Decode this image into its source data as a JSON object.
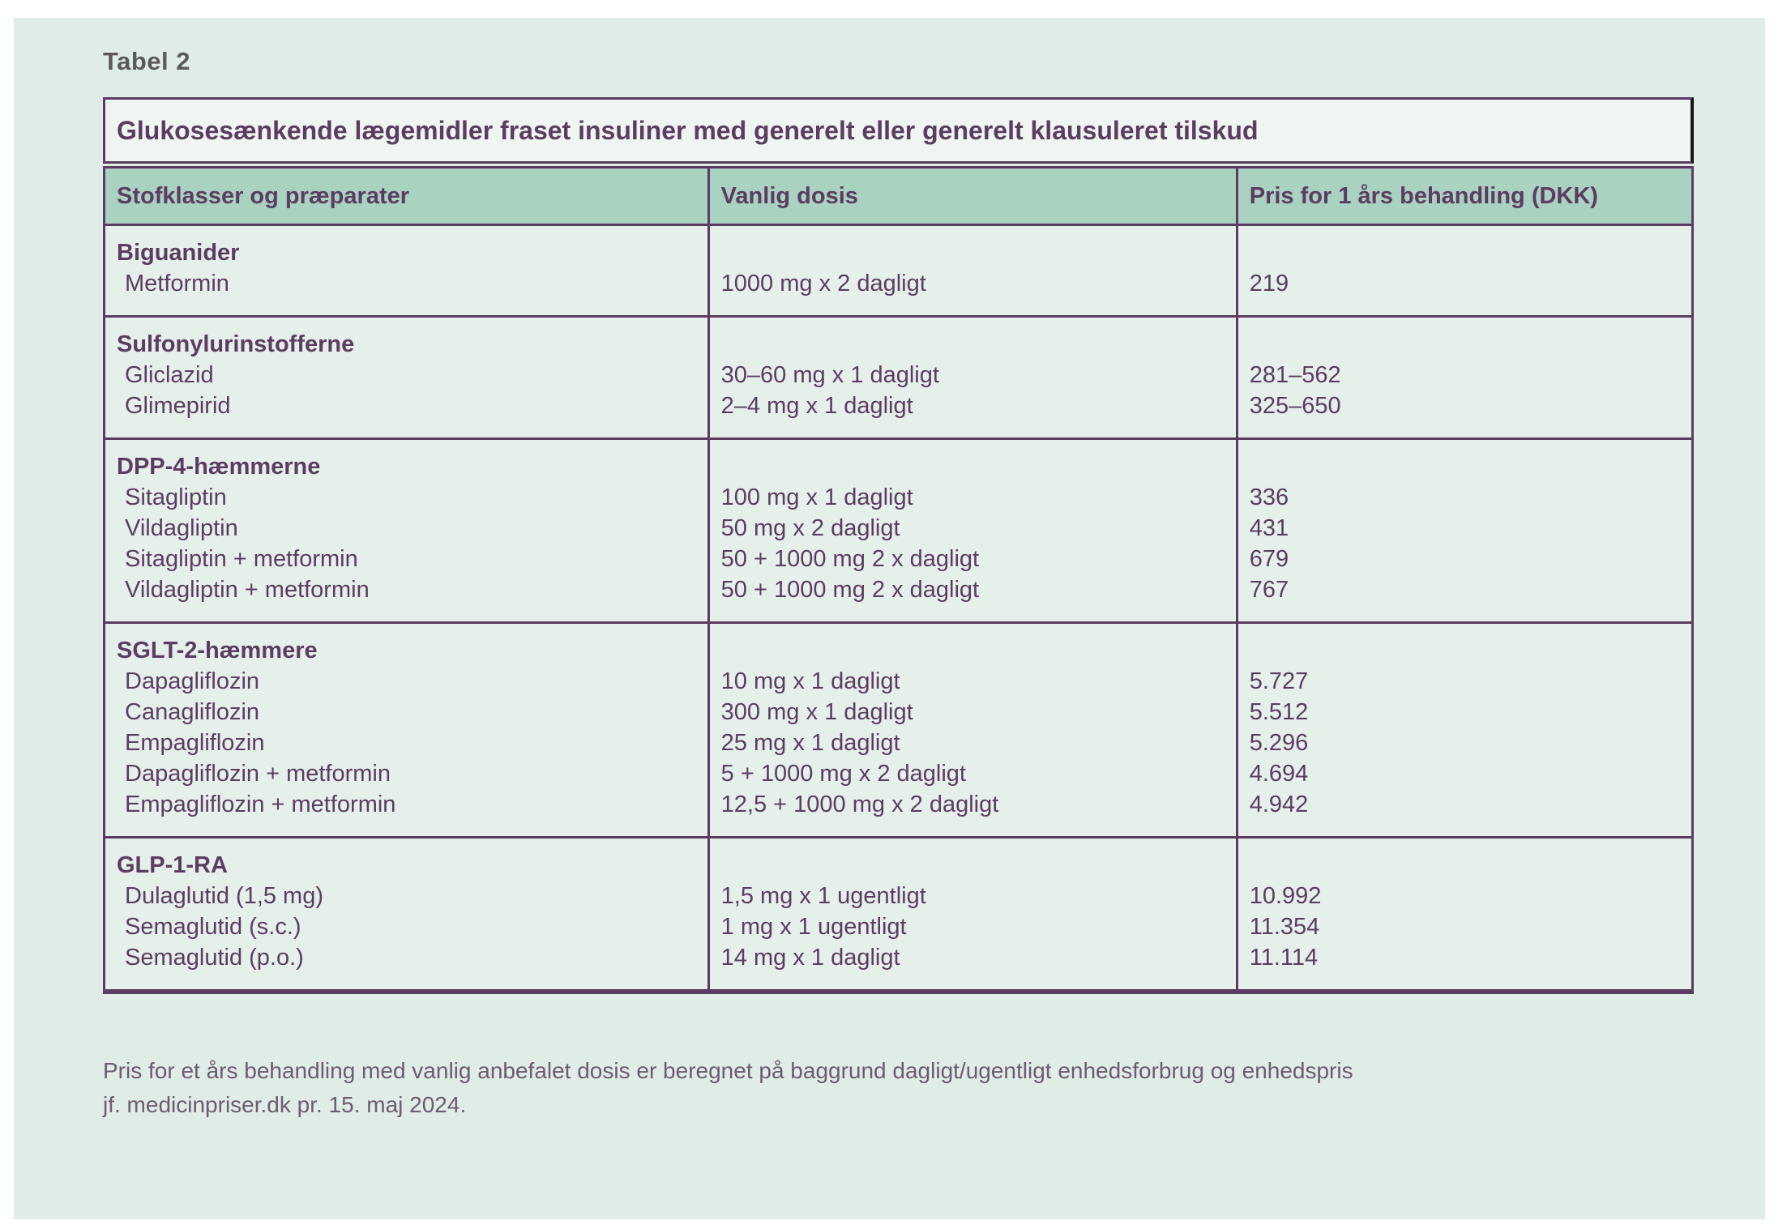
{
  "page": {
    "label": "Tabel 2"
  },
  "table": {
    "title": "Glukosesænkende lægemidler fraset insuliner med generelt eller generelt klausuleret tilskud",
    "columns": [
      "Stofklasser og præparater",
      "Vanlig dosis",
      "Pris for 1 års behandling (DKK)"
    ],
    "sections": [
      {
        "class_name": "Biguanider",
        "rows": [
          {
            "name": "Metformin",
            "dose": "1000 mg x 2 dagligt",
            "price": "219"
          }
        ]
      },
      {
        "class_name": "Sulfonylurinstofferne",
        "rows": [
          {
            "name": "Gliclazid",
            "dose": "30–60 mg x 1 dagligt",
            "price": "281–562"
          },
          {
            "name": "Glimepirid",
            "dose": "2–4 mg x 1 dagligt",
            "price": "325–650"
          }
        ]
      },
      {
        "class_name": "DPP-4-hæmmerne",
        "rows": [
          {
            "name": "Sitagliptin",
            "dose": "100 mg x 1 dagligt",
            "price": "336"
          },
          {
            "name": "Vildagliptin",
            "dose": "50 mg x 2 dagligt",
            "price": "431"
          },
          {
            "name": "Sitagliptin + metformin",
            "dose": "50 + 1000 mg 2 x dagligt",
            "price": "679"
          },
          {
            "name": "Vildagliptin + metformin",
            "dose": "50 + 1000 mg 2 x dagligt",
            "price": "767"
          }
        ]
      },
      {
        "class_name": "SGLT-2-hæmmere",
        "rows": [
          {
            "name": "Dapagliflozin",
            "dose": "10 mg x 1 dagligt",
            "price": "5.727"
          },
          {
            "name": "Canagliflozin",
            "dose": "300 mg x 1 dagligt",
            "price": "5.512"
          },
          {
            "name": "Empagliflozin",
            "dose": "25 mg x 1 dagligt",
            "price": "5.296"
          },
          {
            "name": "Dapagliflozin + metformin",
            "dose": "5 + 1000 mg x 2 dagligt",
            "price": "4.694"
          },
          {
            "name": "Empagliflozin + metformin",
            "dose": "12,5 + 1000 mg x 2 dagligt",
            "price": "4.942"
          }
        ]
      },
      {
        "class_name": "GLP-1-RA",
        "rows": [
          {
            "name": "Dulaglutid (1,5 mg)",
            "dose": "1,5 mg x 1 ugentligt",
            "price": "10.992"
          },
          {
            "name": "Semaglutid (s.c.)",
            "dose": "1 mg x 1 ugentligt",
            "price": "11.354"
          },
          {
            "name": "Semaglutid (p.o.)",
            "dose": "14 mg x 1 dagligt",
            "price": "11.114"
          }
        ]
      }
    ]
  },
  "footnote": {
    "line1": "Pris for et års behandling med vanlig anbefalet dosis er beregnet på baggrund dagligt/ugentligt enhedsforbrug og enhedspris",
    "line2": "jf. medicinpriser.dk pr. 15. maj 2024."
  },
  "colors": {
    "page_background": "#ffffff",
    "canvas_background": "#e0ede6",
    "cell_background": "#e5f0ea",
    "title_bar_background": "#eff6f1",
    "header_row_background": "#a9d3c0",
    "table_border": "#5d3c63",
    "title_bar_right_edge": "#161616",
    "text_purple": "#5d3c63",
    "figure_label_gray": "#595a5c",
    "footnote_text": "#6e5a72"
  }
}
